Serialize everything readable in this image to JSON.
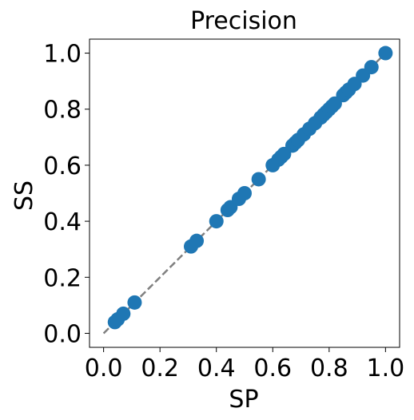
{
  "chart_data": {
    "type": "scatter",
    "title": "Precision",
    "xlabel": "SP",
    "ylabel": "SS",
    "xlim": [
      -0.05,
      1.05
    ],
    "ylim": [
      -0.05,
      1.05
    ],
    "xticks": [
      "0.0",
      "0.2",
      "0.4",
      "0.6",
      "0.8",
      "1.0"
    ],
    "yticks": [
      "0.0",
      "0.2",
      "0.4",
      "0.6",
      "0.8",
      "1.0"
    ],
    "grid": false,
    "reference_line": {
      "from": [
        0,
        0
      ],
      "to": [
        1,
        1
      ],
      "style": "dashed",
      "color": "#808080"
    },
    "series": [
      {
        "color": "#1f77b4",
        "points": [
          [
            0.04,
            0.04
          ],
          [
            0.05,
            0.05
          ],
          [
            0.07,
            0.07
          ],
          [
            0.11,
            0.11
          ],
          [
            0.31,
            0.31
          ],
          [
            0.33,
            0.33
          ],
          [
            0.4,
            0.4
          ],
          [
            0.44,
            0.44
          ],
          [
            0.45,
            0.45
          ],
          [
            0.48,
            0.48
          ],
          [
            0.5,
            0.5
          ],
          [
            0.55,
            0.55
          ],
          [
            0.6,
            0.6
          ],
          [
            0.62,
            0.62
          ],
          [
            0.63,
            0.63
          ],
          [
            0.64,
            0.64
          ],
          [
            0.67,
            0.67
          ],
          [
            0.68,
            0.68
          ],
          [
            0.69,
            0.69
          ],
          [
            0.71,
            0.71
          ],
          [
            0.73,
            0.73
          ],
          [
            0.75,
            0.75
          ],
          [
            0.77,
            0.77
          ],
          [
            0.78,
            0.78
          ],
          [
            0.79,
            0.79
          ],
          [
            0.8,
            0.8
          ],
          [
            0.81,
            0.81
          ],
          [
            0.82,
            0.82
          ],
          [
            0.85,
            0.85
          ],
          [
            0.86,
            0.86
          ],
          [
            0.87,
            0.87
          ],
          [
            0.89,
            0.89
          ],
          [
            0.92,
            0.92
          ],
          [
            0.95,
            0.95
          ],
          [
            1.0,
            1.0
          ]
        ]
      }
    ]
  }
}
